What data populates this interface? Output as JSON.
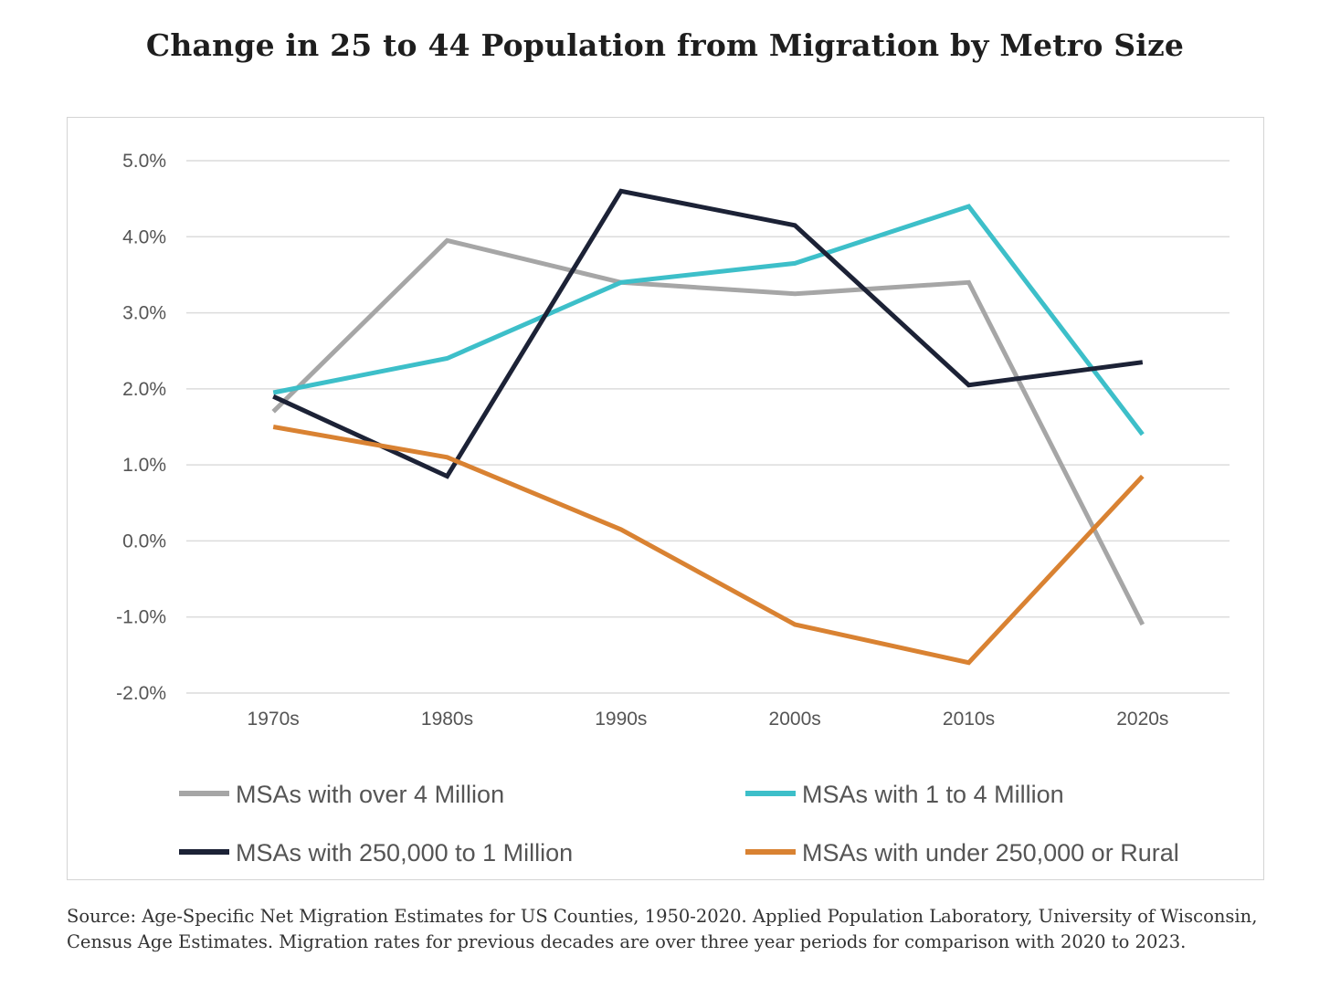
{
  "title": "Change in 25 to 44 Population from Migration by Metro Size",
  "source_note": "Source: Age-Specific Net Migration Estimates for US Counties, 1950-2020. Applied Population Laboratory, University of Wisconsin, Census Age Estimates. Migration rates for previous decades are over three year periods for comparison with 2020 to 2023.",
  "chart_data": {
    "type": "line",
    "categories": [
      "1970s",
      "1980s",
      "1990s",
      "2000s",
      "2010s",
      "2020s"
    ],
    "ylim": [
      -2.0,
      5.0
    ],
    "yticks": [
      5.0,
      4.0,
      3.0,
      2.0,
      1.0,
      0.0,
      -1.0,
      -2.0
    ],
    "ytick_labels": [
      "5.0%",
      "4.0%",
      "3.0%",
      "2.0%",
      "1.0%",
      "0.0%",
      "-1.0%",
      "-2.0%"
    ],
    "grid": true,
    "legend_position": "bottom",
    "series": [
      {
        "name": "MSAs with over 4 Million",
        "color": "#a6a6a6",
        "values": [
          1.7,
          3.95,
          3.4,
          3.25,
          3.4,
          -1.1
        ]
      },
      {
        "name": "MSAs with 1 to 4 Million",
        "color": "#3dbfc9",
        "values": [
          1.95,
          2.4,
          3.4,
          3.65,
          4.4,
          1.4
        ]
      },
      {
        "name": "MSAs with 250,000 to 1 Million",
        "color": "#1c2236",
        "values": [
          1.9,
          0.85,
          4.6,
          4.15,
          2.05,
          2.35
        ]
      },
      {
        "name": "MSAs with under 250,000 or Rural",
        "color": "#d98232",
        "values": [
          1.5,
          1.1,
          0.15,
          -1.1,
          -1.6,
          0.85
        ]
      }
    ]
  }
}
